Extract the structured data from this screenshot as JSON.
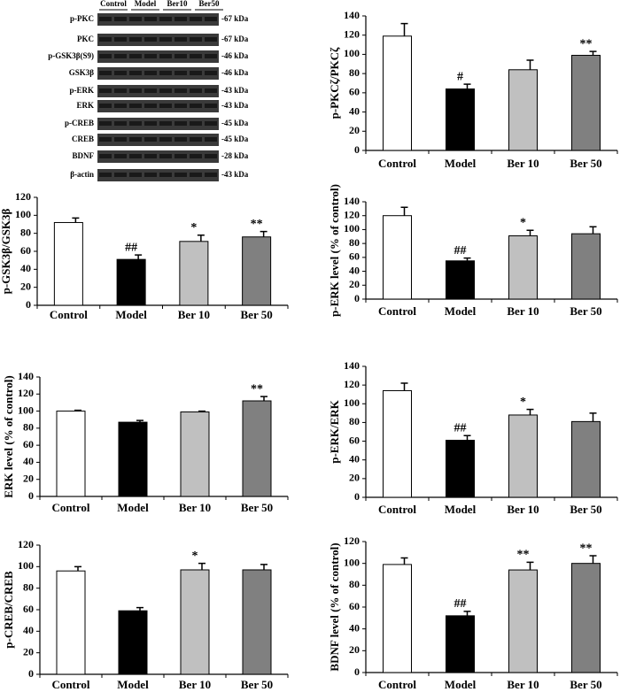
{
  "blot": {
    "lanes": [
      "Control",
      "Model",
      "Ber10",
      "Ber50"
    ],
    "rows": [
      {
        "label": "p-PKC",
        "kda": "-67 kDa"
      },
      {
        "label": "PKC",
        "kda": "-67 kDa"
      },
      {
        "label": "p-GSK3β(S9)",
        "kda": "-46 kDa"
      },
      {
        "label": "GSK3β",
        "kda": "-46 kDa"
      },
      {
        "label": "p-ERK",
        "kda": "-43 kDa"
      },
      {
        "label": "ERK",
        "kda": "-43 kDa"
      },
      {
        "label": "p-CREB",
        "kda": "-45 kDa"
      },
      {
        "label": "CREB",
        "kda": "-45 kDa"
      },
      {
        "label": "BDNF",
        "kda": "-28 kDa"
      },
      {
        "label": "β-actin",
        "kda": "-43 kDa"
      }
    ]
  },
  "chart_data": [
    {
      "type": "bar",
      "y_label": "p-PKCζ/PKCζ",
      "categories": [
        "Control",
        "Model",
        "Ber 10",
        "Ber 50"
      ],
      "values": [
        119,
        64,
        84,
        99
      ],
      "errors": [
        13,
        5,
        10,
        4
      ],
      "annotations": [
        null,
        "#",
        null,
        "**"
      ],
      "colors": [
        "#ffffff",
        "#000000",
        "#c0c0c0",
        "#808080"
      ],
      "ylim": [
        0,
        140
      ],
      "yticks": [
        0,
        20,
        40,
        60,
        80,
        100,
        120,
        140
      ]
    },
    {
      "type": "bar",
      "y_label": "p-GSK3β/GSK3β",
      "categories": [
        "Control",
        "Model",
        "Ber 10",
        "Ber 50"
      ],
      "values": [
        92,
        51,
        71,
        76
      ],
      "errors": [
        5,
        5,
        7,
        6
      ],
      "annotations": [
        null,
        "##",
        "*",
        "**"
      ],
      "colors": [
        "#ffffff",
        "#000000",
        "#c0c0c0",
        "#808080"
      ],
      "ylim": [
        0,
        120
      ],
      "yticks": [
        0,
        20,
        40,
        60,
        80,
        100,
        120
      ]
    },
    {
      "type": "bar",
      "y_label": "p-ERK level (% of control)",
      "categories": [
        "Control",
        "Model",
        "Ber 10",
        "Ber 50"
      ],
      "values": [
        120,
        55,
        91,
        94
      ],
      "errors": [
        12,
        4,
        8,
        10
      ],
      "annotations": [
        null,
        "##",
        "*",
        null
      ],
      "colors": [
        "#ffffff",
        "#000000",
        "#c0c0c0",
        "#808080"
      ],
      "ylim": [
        0,
        140
      ],
      "yticks": [
        0,
        20,
        40,
        60,
        80,
        100,
        120,
        140
      ]
    },
    {
      "type": "bar",
      "y_label": "ERK level (% of control)",
      "categories": [
        "Control",
        "Model",
        "Ber 10",
        "Ber 50"
      ],
      "values": [
        100,
        87,
        99,
        112
      ],
      "errors": [
        1,
        2,
        1,
        5
      ],
      "annotations": [
        null,
        null,
        null,
        "**"
      ],
      "colors": [
        "#ffffff",
        "#000000",
        "#c0c0c0",
        "#808080"
      ],
      "ylim": [
        0,
        140
      ],
      "yticks": [
        0,
        20,
        40,
        60,
        80,
        100,
        120,
        140
      ]
    },
    {
      "type": "bar",
      "y_label": "p-ERK/ERK",
      "categories": [
        "Control",
        "Model",
        "Ber 10",
        "Ber 50"
      ],
      "values": [
        114,
        61,
        88,
        81
      ],
      "errors": [
        8,
        5,
        6,
        9
      ],
      "annotations": [
        null,
        "##",
        "*",
        null
      ],
      "colors": [
        "#ffffff",
        "#000000",
        "#c0c0c0",
        "#808080"
      ],
      "ylim": [
        0,
        140
      ],
      "yticks": [
        0,
        20,
        40,
        60,
        80,
        100,
        120,
        140
      ]
    },
    {
      "type": "bar",
      "y_label": "p-CREB/CREB",
      "categories": [
        "Control",
        "Model",
        "Ber 10",
        "Ber 50"
      ],
      "values": [
        96,
        59,
        97,
        97
      ],
      "errors": [
        4,
        3,
        6,
        5
      ],
      "annotations": [
        null,
        null,
        "*",
        null
      ],
      "colors": [
        "#ffffff",
        "#000000",
        "#c0c0c0",
        "#808080"
      ],
      "ylim": [
        0,
        120
      ],
      "yticks": [
        0,
        20,
        40,
        60,
        80,
        100,
        120
      ]
    },
    {
      "type": "bar",
      "y_label": "BDNF level (% of control)",
      "categories": [
        "Control",
        "Model",
        "Ber 10",
        "Ber 50"
      ],
      "values": [
        99,
        52,
        94,
        100
      ],
      "errors": [
        6,
        4,
        7,
        7
      ],
      "annotations": [
        null,
        "##",
        "**",
        "**"
      ],
      "colors": [
        "#ffffff",
        "#000000",
        "#c0c0c0",
        "#808080"
      ],
      "ylim": [
        0,
        120
      ],
      "yticks": [
        0,
        20,
        40,
        60,
        80,
        100,
        120
      ]
    }
  ]
}
